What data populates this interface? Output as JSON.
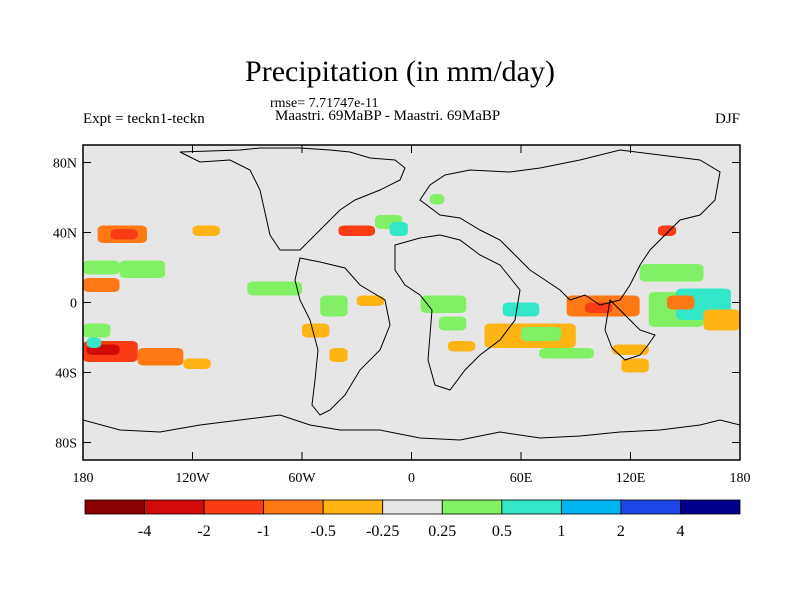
{
  "chart_data": {
    "type": "heatmap",
    "title": "Precipitation (in mm/day)",
    "rmse_label": "rmse= 7.71747e-11",
    "left_label": "Expt = teckn1-teckn",
    "center_label": "Maastri.  69MaBP - Maastri.  69MaBP",
    "right_label": "DJF",
    "x_ticks": [
      "180",
      "120W",
      "60W",
      "0",
      "60E",
      "120E",
      "180"
    ],
    "x_tick_values": [
      -180,
      -120,
      -60,
      0,
      60,
      120,
      180
    ],
    "y_ticks": [
      "80N",
      "40N",
      "0",
      "40S",
      "80S"
    ],
    "y_tick_values": [
      80,
      40,
      0,
      -40,
      -80
    ],
    "xlim": [
      -180,
      180
    ],
    "ylim": [
      -90,
      90
    ],
    "legend_position": "bottom",
    "colorbar": {
      "levels": [
        "-4",
        "-2",
        "-1",
        "-0.5",
        "-0.25",
        "0.25",
        "0.5",
        "1",
        "2",
        "4"
      ],
      "colors": [
        "#8b0000",
        "#d20a0a",
        "#fa3c14",
        "#ff7814",
        "#ffb414",
        "#e6e6e6",
        "#82f064",
        "#32e6c8",
        "#00b4f0",
        "#1e46e6",
        "#00008c"
      ]
    },
    "background_color": "#e6e6e6",
    "regions": [
      {
        "lon": [
          -180,
          -150
        ],
        "lat": [
          -34,
          -22
        ],
        "v": -1.5
      },
      {
        "lon": [
          -178,
          -160
        ],
        "lat": [
          -30,
          -24
        ],
        "v": -3
      },
      {
        "lon": [
          -150,
          -125
        ],
        "lat": [
          -36,
          -26
        ],
        "v": -0.75
      },
      {
        "lon": [
          -125,
          -110
        ],
        "lat": [
          -38,
          -32
        ],
        "v": -0.3
      },
      {
        "lon": [
          -172,
          -145
        ],
        "lat": [
          34,
          44
        ],
        "v": -0.75
      },
      {
        "lon": [
          -165,
          -150
        ],
        "lat": [
          36,
          42
        ],
        "v": -1.5
      },
      {
        "lon": [
          -180,
          -160
        ],
        "lat": [
          6,
          14
        ],
        "v": -0.75
      },
      {
        "lon": [
          -120,
          -105
        ],
        "lat": [
          38,
          44
        ],
        "v": -0.3
      },
      {
        "lon": [
          -180,
          -160
        ],
        "lat": [
          16,
          24
        ],
        "v": 0.35
      },
      {
        "lon": [
          -160,
          -135
        ],
        "lat": [
          14,
          24
        ],
        "v": 0.35
      },
      {
        "lon": [
          -180,
          -165
        ],
        "lat": [
          -20,
          -12
        ],
        "v": 0.35
      },
      {
        "lon": [
          -178,
          -170
        ],
        "lat": [
          -26,
          -20
        ],
        "v": 0.75
      },
      {
        "lon": [
          -90,
          -60
        ],
        "lat": [
          4,
          12
        ],
        "v": 0.35
      },
      {
        "lon": [
          -50,
          -35
        ],
        "lat": [
          -8,
          4
        ],
        "v": 0.35
      },
      {
        "lon": [
          -40,
          -20
        ],
        "lat": [
          38,
          44
        ],
        "v": -1.5
      },
      {
        "lon": [
          -20,
          -5
        ],
        "lat": [
          42,
          50
        ],
        "v": 0.35
      },
      {
        "lon": [
          -12,
          -2
        ],
        "lat": [
          38,
          46
        ],
        "v": 0.75
      },
      {
        "lon": [
          -30,
          -15
        ],
        "lat": [
          -2,
          4
        ],
        "v": -0.35
      },
      {
        "lon": [
          -60,
          -45
        ],
        "lat": [
          -20,
          -12
        ],
        "v": -0.35
      },
      {
        "lon": [
          -45,
          -35
        ],
        "lat": [
          -34,
          -26
        ],
        "v": -0.35
      },
      {
        "lon": [
          5,
          30
        ],
        "lat": [
          -6,
          4
        ],
        "v": 0.35
      },
      {
        "lon": [
          15,
          30
        ],
        "lat": [
          -16,
          -8
        ],
        "v": 0.35
      },
      {
        "lon": [
          20,
          35
        ],
        "lat": [
          -28,
          -22
        ],
        "v": -0.3
      },
      {
        "lon": [
          40,
          90
        ],
        "lat": [
          -26,
          -12
        ],
        "v": -0.35
      },
      {
        "lon": [
          60,
          82
        ],
        "lat": [
          -22,
          -14
        ],
        "v": 0.35
      },
      {
        "lon": [
          50,
          70
        ],
        "lat": [
          -8,
          0
        ],
        "v": 0.75
      },
      {
        "lon": [
          85,
          125
        ],
        "lat": [
          -8,
          4
        ],
        "v": -0.75
      },
      {
        "lon": [
          95,
          110
        ],
        "lat": [
          -6,
          0
        ],
        "v": -1.5
      },
      {
        "lon": [
          130,
          160
        ],
        "lat": [
          -14,
          6
        ],
        "v": 0.35
      },
      {
        "lon": [
          145,
          175
        ],
        "lat": [
          -10,
          8
        ],
        "v": 0.75
      },
      {
        "lon": [
          125,
          160
        ],
        "lat": [
          12,
          22
        ],
        "v": 0.35
      },
      {
        "lon": [
          140,
          155
        ],
        "lat": [
          -4,
          4
        ],
        "v": -0.75
      },
      {
        "lon": [
          160,
          180
        ],
        "lat": [
          -16,
          -4
        ],
        "v": -0.3
      },
      {
        "lon": [
          115,
          130
        ],
        "lat": [
          -40,
          -32
        ],
        "v": -0.35
      },
      {
        "lon": [
          135,
          145
        ],
        "lat": [
          38,
          44
        ],
        "v": -1.5
      },
      {
        "lon": [
          70,
          100
        ],
        "lat": [
          -32,
          -26
        ],
        "v": 0.35
      },
      {
        "lon": [
          110,
          130
        ],
        "lat": [
          -30,
          -24
        ],
        "v": -0.3
      },
      {
        "lon": [
          10,
          18
        ],
        "lat": [
          56,
          62
        ],
        "v": 0.35
      }
    ]
  }
}
